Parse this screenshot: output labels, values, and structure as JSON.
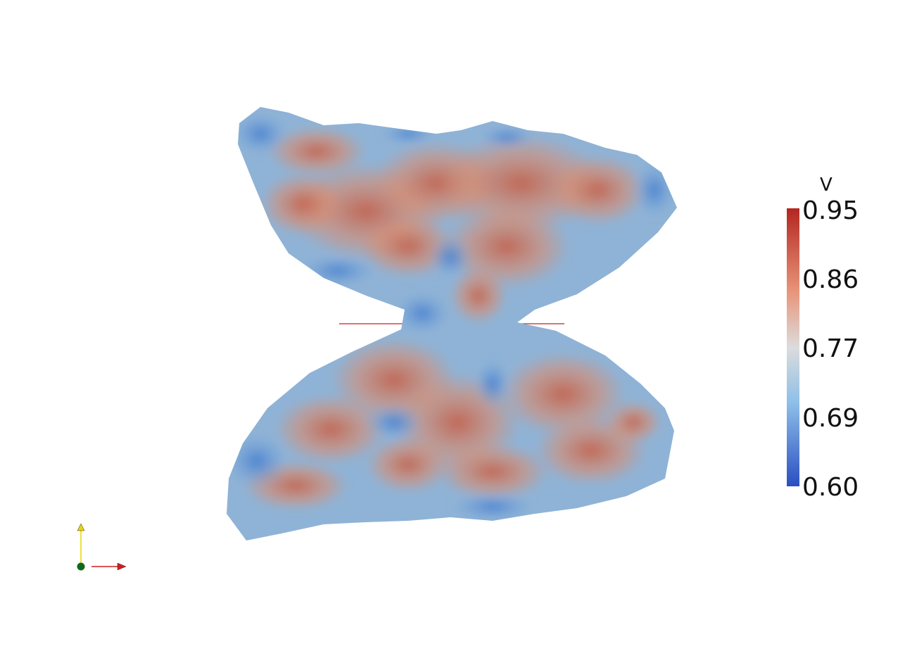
{
  "colorbar": {
    "title": "V",
    "labels": [
      "0.95",
      "0.86",
      "0.77",
      "0.69",
      "0.60"
    ],
    "colors": {
      "high": "#b4261f",
      "mid_high": "#e8957a",
      "mid": "#dcdcdc",
      "mid_low": "#8ebfe8",
      "low": "#2a4fc2"
    }
  },
  "scene": {
    "background": "#ffffff",
    "surface_colors": {
      "warm": "#d9775a",
      "cool": "#6b9fd4",
      "neutral": "#c9c5c0"
    },
    "axis_colors": {
      "x": "#cc1f1f",
      "y": "#e8d400",
      "origin": "#0d6b16"
    }
  }
}
